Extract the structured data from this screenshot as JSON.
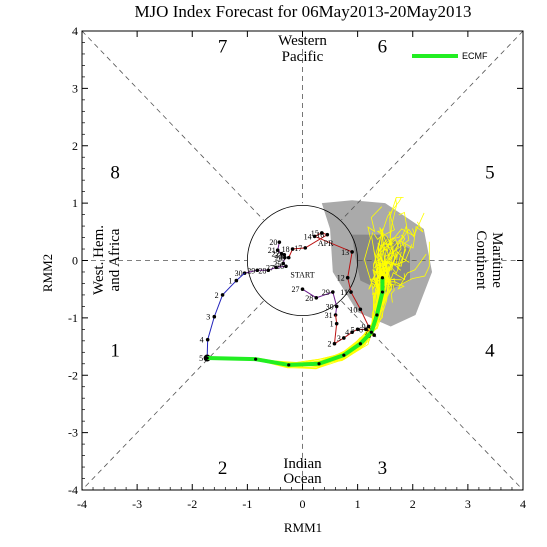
{
  "chart_data": {
    "type": "line",
    "title": "MJO Index Forecast for 06May2013-20May2013",
    "xlabel": "RMM1",
    "ylabel": "RMM2",
    "xlim": [
      -4,
      4
    ],
    "ylim": [
      -4,
      4
    ],
    "xticks": [
      "-4",
      "-3",
      "-2",
      "-1",
      "0",
      "1",
      "2",
      "3",
      "4"
    ],
    "yticks": [
      "-4",
      "-3",
      "-2",
      "-1",
      "0",
      "1",
      "2",
      "3",
      "4"
    ],
    "phase_numbers": [
      {
        "label": "1",
        "x": -3.4,
        "y": -1.55
      },
      {
        "label": "2",
        "x": -1.45,
        "y": -3.6
      },
      {
        "label": "3",
        "x": 1.45,
        "y": -3.6
      },
      {
        "label": "4",
        "x": 3.4,
        "y": -1.55
      },
      {
        "label": "5",
        "x": 3.4,
        "y": 1.55
      },
      {
        "label": "6",
        "x": 1.45,
        "y": 3.75
      },
      {
        "label": "7",
        "x": -1.45,
        "y": 3.75
      },
      {
        "label": "8",
        "x": -3.4,
        "y": 1.55
      }
    ],
    "regions": {
      "top": [
        "Western",
        "Pacific"
      ],
      "bottom": [
        "Indian",
        "Ocean"
      ],
      "left": [
        "West. Hem.",
        "and Africa"
      ],
      "right": [
        "Maritime",
        "Continent"
      ]
    },
    "legend": [
      {
        "name": "ECMF",
        "color": "#22ee22"
      }
    ],
    "markers": {
      "start": "START",
      "apr": "APR"
    },
    "colors": {
      "observed_blue": "#2222bb",
      "observed_red": "#bb1111",
      "observed_purple": "#6a1a8a",
      "ensemble": "#ffff00",
      "ensemble_mean": "#22ee22",
      "spread_light": "#aaaaaa",
      "spread_dark": "#888888"
    },
    "observed_purple": [
      {
        "label": "27",
        "x": 0.0,
        "y": -0.5
      },
      {
        "label": "28",
        "x": 0.25,
        "y": -0.65
      },
      {
        "label": "29",
        "x": 0.55,
        "y": -0.55
      },
      {
        "label": "30",
        "x": 0.62,
        "y": -0.8
      },
      {
        "label": "31",
        "x": 0.6,
        "y": -0.95
      }
    ],
    "observed_march_purple": [
      {
        "label": "20",
        "x": -0.42,
        "y": 0.32
      },
      {
        "label": "21",
        "x": -0.45,
        "y": 0.18
      },
      {
        "label": "22",
        "x": -0.38,
        "y": 0.12
      },
      {
        "label": "23",
        "x": -0.33,
        "y": 0.1
      },
      {
        "label": "24",
        "x": -0.32,
        "y": 0.05
      },
      {
        "label": "25",
        "x": -0.35,
        "y": -0.05
      },
      {
        "label": "26",
        "x": -0.3,
        "y": -0.1
      },
      {
        "label": "27",
        "x": -0.48,
        "y": -0.12
      },
      {
        "label": "28",
        "x": -0.62,
        "y": -0.17
      },
      {
        "label": "29",
        "x": -0.82,
        "y": -0.17
      },
      {
        "label": "30",
        "x": -1.05,
        "y": -0.22
      }
    ],
    "observed_blue": [
      {
        "label": "1",
        "x": -1.2,
        "y": -0.35
      },
      {
        "label": "2",
        "x": -1.45,
        "y": -0.6
      },
      {
        "label": "3",
        "x": -1.6,
        "y": -0.98
      },
      {
        "label": "4",
        "x": -1.72,
        "y": -1.38
      },
      {
        "label": "5",
        "x": -1.73,
        "y": -1.7
      }
    ],
    "observed_red": [
      {
        "label": "1",
        "x": 0.62,
        "y": -1.1
      },
      {
        "label": "2",
        "x": 0.58,
        "y": -1.45
      },
      {
        "label": "3",
        "x": 0.75,
        "y": -1.35
      },
      {
        "label": "4",
        "x": 0.9,
        "y": -1.25
      },
      {
        "label": "5",
        "x": 1.0,
        "y": -1.2
      },
      {
        "label": "6",
        "x": 1.15,
        "y": -1.2
      },
      {
        "label": "7",
        "x": 1.25,
        "y": -1.25
      },
      {
        "label": "8",
        "x": 1.3,
        "y": -1.3
      },
      {
        "label": "9",
        "x": 1.2,
        "y": -1.15
      },
      {
        "label": "10",
        "x": 1.05,
        "y": -0.85
      },
      {
        "label": "11",
        "x": 0.88,
        "y": -0.55
      },
      {
        "label": "12",
        "x": 0.82,
        "y": -0.3
      },
      {
        "label": "13",
        "x": 0.9,
        "y": 0.15
      },
      {
        "label": "14",
        "x": 0.22,
        "y": 0.42
      },
      {
        "label": "15",
        "x": 0.35,
        "y": 0.48
      },
      {
        "label": "16",
        "x": 0.45,
        "y": 0.45
      },
      {
        "label": "17",
        "x": 0.05,
        "y": 0.22
      }
    ],
    "observed_red_extra": [
      {
        "label": "18",
        "x": -0.18,
        "y": 0.2
      },
      {
        "label": "19",
        "x": -0.25,
        "y": 0.05
      }
    ],
    "ensemble_mean": [
      {
        "x": -1.73,
        "y": -1.7
      },
      {
        "x": -0.85,
        "y": -1.72
      },
      {
        "x": -0.25,
        "y": -1.82
      },
      {
        "x": 0.3,
        "y": -1.8
      },
      {
        "x": 0.75,
        "y": -1.65
      },
      {
        "x": 1.05,
        "y": -1.45
      },
      {
        "x": 1.25,
        "y": -1.25
      },
      {
        "x": 1.35,
        "y": -0.95
      },
      {
        "x": 1.45,
        "y": -0.55
      },
      {
        "x": 1.45,
        "y": -0.3
      }
    ]
  }
}
